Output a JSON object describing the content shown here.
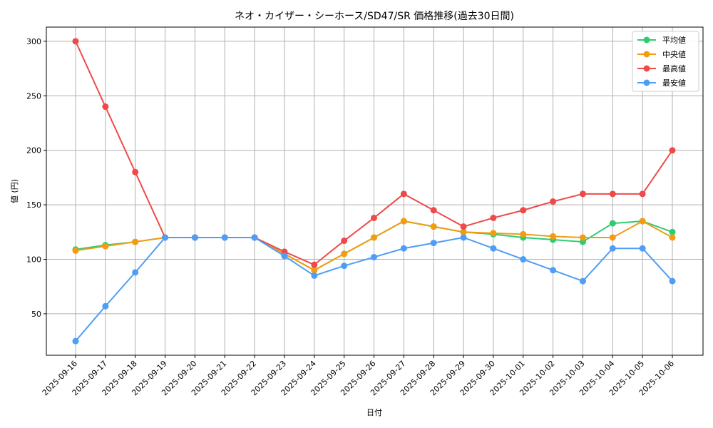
{
  "chart_data": {
    "type": "line",
    "title": "ネオ・カイザー・シーホース/SD47/SR 価格推移(過去30日間)",
    "xlabel": "日付",
    "ylabel": "値 (円)",
    "ylim": [
      12,
      313
    ],
    "yticks": [
      50,
      100,
      150,
      200,
      250,
      300
    ],
    "grid": true,
    "legend_position": "top-right",
    "categories": [
      "2025-09-16",
      "2025-09-17",
      "2025-09-18",
      "2025-09-19",
      "2025-09-20",
      "2025-09-21",
      "2025-09-22",
      "2025-09-23",
      "2025-09-24",
      "2025-09-25",
      "2025-09-26",
      "2025-09-27",
      "2025-09-28",
      "2025-09-29",
      "2025-09-30",
      "2025-10-01",
      "2025-10-02",
      "2025-10-03",
      "2025-10-04",
      "2025-10-05",
      "2025-10-06"
    ],
    "series": [
      {
        "name": "平均値",
        "color": "#2ecc71",
        "values": [
          109,
          113,
          116,
          120,
          120,
          120,
          120,
          105,
          90,
          105,
          120,
          135,
          130,
          125,
          123,
          120,
          118,
          116,
          133,
          135,
          125
        ]
      },
      {
        "name": "中央値",
        "color": "#f39c12",
        "values": [
          108,
          112,
          116,
          120,
          120,
          120,
          120,
          105,
          90,
          105,
          120,
          135,
          130,
          125,
          124,
          123,
          121,
          120,
          120,
          135,
          120
        ]
      },
      {
        "name": "最高値",
        "color": "#ef4a4a",
        "values": [
          300,
          240,
          180,
          120,
          120,
          120,
          120,
          107,
          95,
          117,
          138,
          160,
          145,
          130,
          138,
          145,
          153,
          160,
          160,
          160,
          200
        ]
      },
      {
        "name": "最安値",
        "color": "#4e9ef5",
        "values": [
          25,
          57,
          88,
          120,
          120,
          120,
          120,
          103,
          85,
          94,
          102,
          110,
          115,
          120,
          110,
          100,
          90,
          80,
          110,
          110,
          80
        ]
      }
    ]
  }
}
